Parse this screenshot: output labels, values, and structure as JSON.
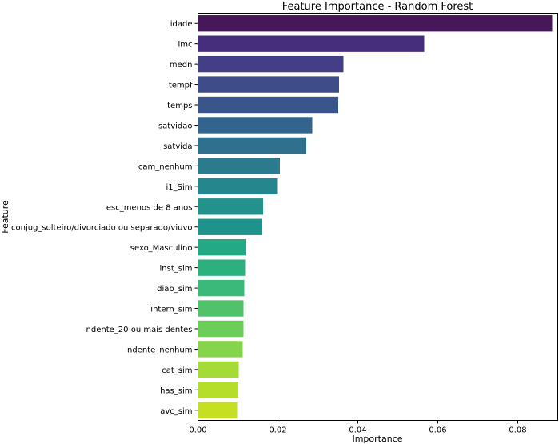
{
  "chart_data": {
    "type": "bar",
    "orientation": "horizontal",
    "title": "Feature Importance - Random Forest",
    "xlabel": "Importance",
    "ylabel": "Feature",
    "xlim": [
      0,
      0.09
    ],
    "xticks": [
      {
        "value": 0.0,
        "label": "0.00"
      },
      {
        "value": 0.02,
        "label": "0.02"
      },
      {
        "value": 0.04,
        "label": "0.04"
      },
      {
        "value": 0.06,
        "label": "0.06"
      },
      {
        "value": 0.08,
        "label": "0.08"
      }
    ],
    "grid": false,
    "legend": "none",
    "colormap": "viridis",
    "categories": [
      "idade",
      "imc",
      "medn",
      "tempf",
      "temps",
      "satvidao",
      "satvida",
      "cam_nenhum",
      "i1_Sim",
      "esc_menos de 8 anos",
      "conjug_solteiro/divorciado ou separado/viuvo",
      "sexo_Masculino",
      "inst_sim",
      "diab_sim",
      "intern_sim",
      "ndente_20 ou mais dentes",
      "ndente_nenhum",
      "cat_sim",
      "has_sim",
      "avc_sim"
    ],
    "values": [
      0.0886,
      0.0566,
      0.0364,
      0.0353,
      0.0351,
      0.0286,
      0.0271,
      0.0205,
      0.0198,
      0.0163,
      0.0161,
      0.0119,
      0.0118,
      0.0116,
      0.0114,
      0.0114,
      0.0112,
      0.0102,
      0.0101,
      0.0098
    ],
    "colors": [
      "#46185a",
      "#472e7c",
      "#433e85",
      "#3e4d8a",
      "#3a548c",
      "#33648d",
      "#2f708e",
      "#2a7b8e",
      "#26868e",
      "#23918c",
      "#20928c",
      "#23a983",
      "#2cb07e",
      "#3bb97a",
      "#51c26a",
      "#6ccd5a",
      "#86d449",
      "#a5db36",
      "#b5de2b",
      "#c5e021"
    ]
  }
}
